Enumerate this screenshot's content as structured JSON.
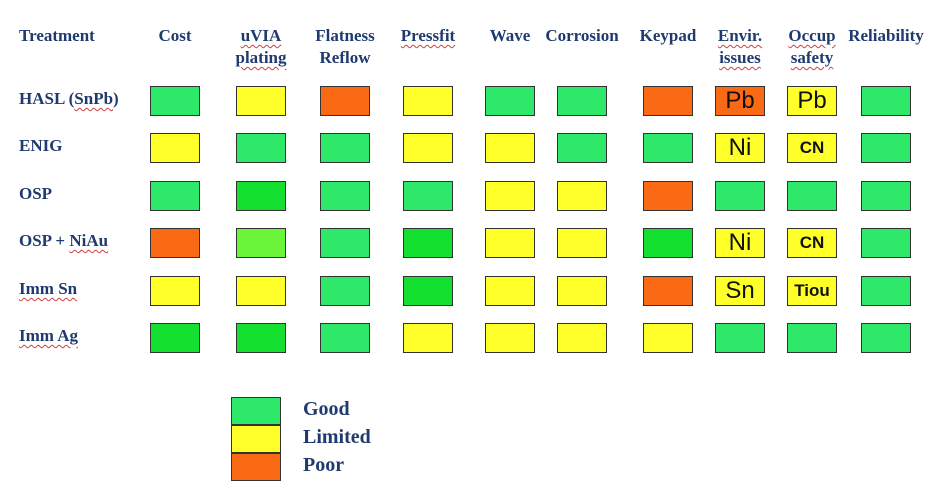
{
  "colors": {
    "good": "#2ee86a",
    "good_bright": "#14e030",
    "good_light": "#6af53a",
    "limited": "#ffff2a",
    "poor": "#fa6a14"
  },
  "headers": [
    {
      "lines": [
        "Treatment"
      ],
      "spell": false
    },
    {
      "lines": [
        "Cost"
      ],
      "spell": false
    },
    {
      "lines": [
        "uVIA",
        "plating"
      ],
      "spell": true
    },
    {
      "lines": [
        "Flatness",
        "Reflow"
      ],
      "spell": false
    },
    {
      "lines": [
        "Pressfit"
      ],
      "spell": true
    },
    {
      "lines": [
        "Wave"
      ],
      "spell": false
    },
    {
      "lines": [
        "Corrosion"
      ],
      "spell": false
    },
    {
      "lines": [
        "Keypad"
      ],
      "spell": false
    },
    {
      "lines": [
        "Envir.",
        "issues"
      ],
      "spell": true
    },
    {
      "lines": [
        "Occup",
        "safety"
      ],
      "spell": true
    },
    {
      "lines": [
        "Reliability"
      ],
      "spell": false
    }
  ],
  "rows": [
    {
      "label_main": "HASL (",
      "label_sq": "SnPb",
      "label_end": ")",
      "cells": [
        {
          "c": "good"
        },
        {
          "c": "limited"
        },
        {
          "c": "poor"
        },
        {
          "c": "limited"
        },
        {
          "c": "good"
        },
        {
          "c": "good"
        },
        {
          "c": "poor"
        },
        {
          "c": "poor",
          "tag": "Pb",
          "size": "big"
        },
        {
          "c": "limited",
          "tag": "Pb",
          "size": "big"
        },
        {
          "c": "good"
        }
      ]
    },
    {
      "label_main": "ENIG",
      "label_sq": "",
      "label_end": "",
      "cells": [
        {
          "c": "limited"
        },
        {
          "c": "good"
        },
        {
          "c": "good"
        },
        {
          "c": "limited"
        },
        {
          "c": "limited"
        },
        {
          "c": "good"
        },
        {
          "c": "good"
        },
        {
          "c": "limited",
          "tag": "Ni",
          "size": "big"
        },
        {
          "c": "limited",
          "tag": "CN",
          "size": "small"
        },
        {
          "c": "good"
        }
      ]
    },
    {
      "label_main": "OSP",
      "label_sq": "",
      "label_end": "",
      "cells": [
        {
          "c": "good"
        },
        {
          "c": "good_bright"
        },
        {
          "c": "good"
        },
        {
          "c": "good"
        },
        {
          "c": "limited"
        },
        {
          "c": "limited"
        },
        {
          "c": "poor"
        },
        {
          "c": "good"
        },
        {
          "c": "good"
        },
        {
          "c": "good"
        }
      ]
    },
    {
      "label_main": "OSP + ",
      "label_sq": "NiAu",
      "label_end": "",
      "cells": [
        {
          "c": "poor"
        },
        {
          "c": "good_light"
        },
        {
          "c": "good"
        },
        {
          "c": "good_bright"
        },
        {
          "c": "limited"
        },
        {
          "c": "limited"
        },
        {
          "c": "good_bright"
        },
        {
          "c": "limited",
          "tag": "Ni",
          "size": "big"
        },
        {
          "c": "limited",
          "tag": "CN",
          "size": "small"
        },
        {
          "c": "good"
        }
      ]
    },
    {
      "label_main": "",
      "label_sq": "Imm Sn",
      "label_end": "",
      "cells": [
        {
          "c": "limited"
        },
        {
          "c": "limited"
        },
        {
          "c": "good"
        },
        {
          "c": "good_bright"
        },
        {
          "c": "limited"
        },
        {
          "c": "limited"
        },
        {
          "c": "poor"
        },
        {
          "c": "limited",
          "tag": "Sn",
          "size": "big"
        },
        {
          "c": "limited",
          "tag": "Tiou",
          "size": "small"
        },
        {
          "c": "good"
        }
      ]
    },
    {
      "label_main": "",
      "label_sq": "Imm Ag",
      "label_end": "",
      "cells": [
        {
          "c": "good_bright"
        },
        {
          "c": "good_bright"
        },
        {
          "c": "good"
        },
        {
          "c": "limited"
        },
        {
          "c": "limited"
        },
        {
          "c": "limited"
        },
        {
          "c": "limited"
        },
        {
          "c": "good"
        },
        {
          "c": "good"
        },
        {
          "c": "good"
        }
      ]
    }
  ],
  "legend": [
    {
      "c": "good",
      "label": "Good"
    },
    {
      "c": "limited",
      "label": "Limited"
    },
    {
      "c": "poor",
      "label": "Poor"
    }
  ]
}
